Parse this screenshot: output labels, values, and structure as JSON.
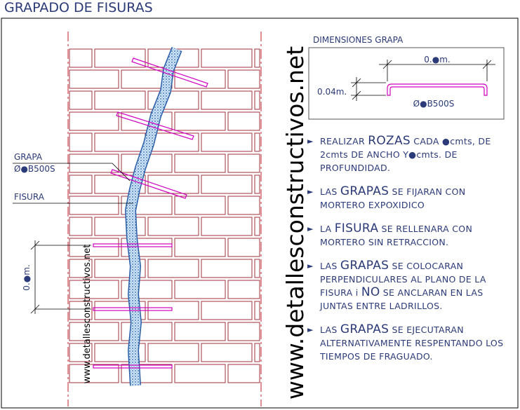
{
  "header": {
    "title": "GRAPADO DE FISURAS"
  },
  "dimensions": {
    "title": "DIMENSIONES GRAPA",
    "length": "0.●m.",
    "height": "0.04m.",
    "bar": "Ø●B500S"
  },
  "labels": {
    "grapa": "GRAPA",
    "grapa_bar": "Ø●B500S",
    "fisura": "FISURA",
    "spacing": "0.●m."
  },
  "watermark": {
    "large": "www.detallesconstructivos.net",
    "small": "www.detallesconstructivos.net"
  },
  "notes": [
    {
      "bullet": "►",
      "parts": [
        {
          "text": "REALIZAR ",
          "big": false
        },
        {
          "text": "ROZAS",
          "big": true
        },
        {
          "text": " CADA ●cmts, DE 2cmts DE ANCHO Y●cmts. DE PROFUNDIDAD.",
          "big": false
        }
      ]
    },
    {
      "bullet": "►",
      "parts": [
        {
          "text": "LAS ",
          "big": false
        },
        {
          "text": "GRAPAS",
          "big": true
        },
        {
          "text": " SE FIJARAN CON MORTERO EXPOXIDICO",
          "big": false
        }
      ]
    },
    {
      "bullet": "►",
      "parts": [
        {
          "text": "LA ",
          "big": false
        },
        {
          "text": "FISURA",
          "big": true
        },
        {
          "text": " SE RELLENARA CON MORTERO SIN RETRACCION.",
          "big": false
        }
      ]
    },
    {
      "bullet": "►",
      "parts": [
        {
          "text": "LAS ",
          "big": false
        },
        {
          "text": "GRAPAS",
          "big": true
        },
        {
          "text": " SE COLOCARAN PERPENDICULARES AL PLANO DE LA FISURA i ",
          "big": false
        },
        {
          "text": "NO",
          "big": true
        },
        {
          "text": " SE ANCLARAN EN LAS JUNTAS ENTRE LADRILLOS.",
          "big": false
        }
      ]
    },
    {
      "bullet": "►",
      "parts": [
        {
          "text": "LAS ",
          "big": false
        },
        {
          "text": "GRAPAS",
          "big": true
        },
        {
          "text": " SE EJECUTARAN ALTERNATIVAMENTE RESPENTANDO LOS TIEMPOS DE FRAGUADO.",
          "big": false
        }
      ]
    }
  ]
}
